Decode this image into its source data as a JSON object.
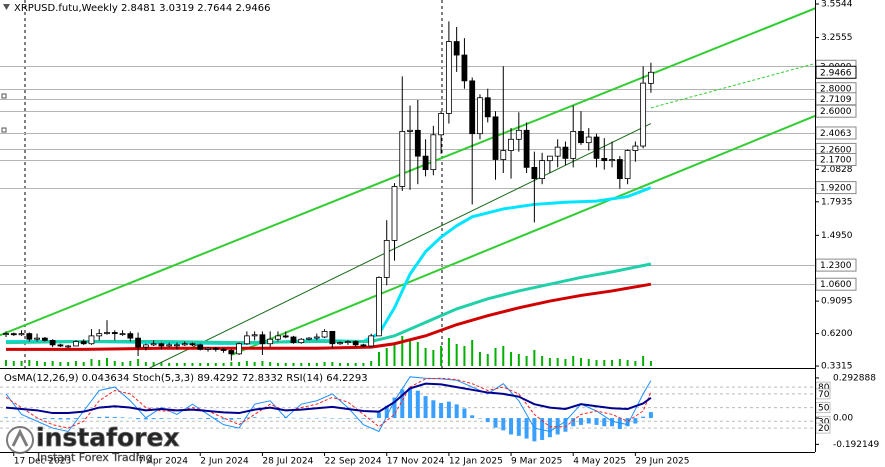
{
  "chart_data": {
    "type": "candlestick",
    "title": "XRPUSD.futu,Weekly 2.8481 3.0319 2.7644 2.9466",
    "categories": [
      null,
      "17 Dec 2023",
      null,
      null,
      null,
      null,
      null,
      null,
      null,
      null,
      null,
      null,
      null,
      null,
      null,
      null,
      null,
      "7 Apr 2024",
      null,
      null,
      null,
      null,
      null,
      null,
      null,
      "2 Jun 2024",
      null,
      null,
      null,
      null,
      null,
      null,
      null,
      "28 Jul 2024",
      null,
      null,
      null,
      null,
      null,
      null,
      null,
      "22 Sep 2024",
      null,
      null,
      null,
      null,
      null,
      null,
      null,
      "17 Nov 2024",
      null,
      null,
      null,
      null,
      null,
      null,
      null,
      "12 Jan 2025",
      null,
      null,
      null,
      null,
      null,
      null,
      null,
      "9 Mar 2025",
      null,
      null,
      null,
      null,
      null,
      null,
      null,
      "4 May 2025",
      null,
      null,
      null,
      null,
      null,
      null,
      null,
      "29 Jun 2025",
      null,
      null
    ],
    "open": [
      0.62,
      0.62,
      0.61,
      0.62,
      0.57,
      0.58,
      0.56,
      0.52,
      0.51,
      0.51,
      0.55,
      0.53,
      0.6,
      0.62,
      0.63,
      0.62,
      0.62,
      0.58,
      0.5,
      0.52,
      0.53,
      0.51,
      0.52,
      0.52,
      0.53,
      0.52,
      0.48,
      0.49,
      0.48,
      0.47,
      0.44,
      0.53,
      0.6,
      0.61,
      0.53,
      0.57,
      0.6,
      0.59,
      0.54,
      0.57,
      0.58,
      0.59,
      0.64,
      0.53,
      0.54,
      0.55,
      0.52,
      0.51,
      0.6,
      1.12,
      1.45,
      1.93,
      2.42,
      2.43,
      2.2,
      2.08,
      2.39,
      2.58,
      3.22,
      3.1,
      2.87,
      2.4,
      2.72,
      2.55,
      2.17,
      2.25,
      2.35,
      2.43,
      2.1,
      2.0,
      2.16,
      2.2,
      2.28,
      2.18,
      2.42,
      2.32,
      2.37,
      2.18,
      2.16,
      2.17,
      2.0,
      2.25,
      2.29,
      2.8481
    ],
    "high": [
      0.64,
      0.63,
      0.65,
      0.63,
      0.62,
      0.59,
      0.57,
      0.53,
      0.52,
      0.56,
      0.57,
      0.66,
      0.66,
      0.74,
      0.65,
      0.65,
      0.64,
      0.63,
      0.53,
      0.56,
      0.54,
      0.54,
      0.54,
      0.55,
      0.54,
      0.53,
      0.5,
      0.5,
      0.49,
      0.48,
      0.54,
      0.64,
      0.64,
      0.64,
      0.64,
      0.64,
      0.64,
      0.6,
      0.58,
      0.59,
      0.62,
      0.66,
      0.64,
      0.55,
      0.56,
      0.56,
      0.53,
      0.62,
      1.13,
      1.63,
      1.96,
      2.91,
      2.65,
      2.7,
      2.35,
      2.47,
      2.6,
      3.4,
      3.35,
      3.25,
      2.9,
      2.75,
      2.8,
      2.6,
      3.0,
      2.45,
      2.59,
      2.5,
      2.24,
      2.23,
      2.2,
      2.35,
      2.33,
      2.65,
      2.6,
      2.45,
      2.4,
      2.36,
      2.33,
      2.2,
      2.26,
      2.33,
      3.0,
      3.0319
    ],
    "low": [
      0.59,
      0.6,
      0.6,
      0.55,
      0.55,
      0.55,
      0.5,
      0.5,
      0.49,
      0.51,
      0.52,
      0.52,
      0.56,
      0.61,
      0.56,
      0.6,
      0.55,
      0.42,
      0.47,
      0.51,
      0.48,
      0.5,
      0.48,
      0.51,
      0.51,
      0.47,
      0.46,
      0.46,
      0.45,
      0.38,
      0.43,
      0.52,
      0.56,
      0.43,
      0.5,
      0.55,
      0.58,
      0.53,
      0.53,
      0.56,
      0.56,
      0.58,
      0.49,
      0.52,
      0.52,
      0.5,
      0.5,
      0.5,
      0.6,
      1.05,
      1.27,
      1.89,
      1.9,
      1.95,
      2.02,
      2.03,
      2.22,
      2.49,
      2.95,
      2.8,
      1.77,
      2.35,
      2.5,
      1.99,
      2.05,
      2.0,
      2.24,
      2.05,
      1.61,
      1.95,
      2.05,
      2.1,
      2.12,
      2.1,
      2.3,
      2.25,
      2.1,
      2.08,
      2.1,
      1.91,
      1.95,
      2.15,
      2.27,
      2.7644
    ],
    "close": [
      0.62,
      0.61,
      0.62,
      0.57,
      0.58,
      0.56,
      0.52,
      0.51,
      0.51,
      0.55,
      0.53,
      0.6,
      0.62,
      0.63,
      0.62,
      0.62,
      0.58,
      0.5,
      0.52,
      0.53,
      0.51,
      0.52,
      0.52,
      0.53,
      0.52,
      0.48,
      0.49,
      0.48,
      0.47,
      0.44,
      0.53,
      0.6,
      0.61,
      0.53,
      0.57,
      0.6,
      0.59,
      0.54,
      0.57,
      0.58,
      0.59,
      0.64,
      0.53,
      0.54,
      0.55,
      0.52,
      0.51,
      0.6,
      1.12,
      1.45,
      1.93,
      2.42,
      2.43,
      2.2,
      2.08,
      2.39,
      2.58,
      3.22,
      3.1,
      2.87,
      2.4,
      2.72,
      2.55,
      2.17,
      2.25,
      2.35,
      2.43,
      2.1,
      2.0,
      2.16,
      2.2,
      2.28,
      2.18,
      2.42,
      2.32,
      2.37,
      2.18,
      2.16,
      2.17,
      2.0,
      2.25,
      2.29,
      2.85,
      2.9466
    ],
    "up_color": "#ffffff",
    "down_color": "#000000",
    "volume": [
      6,
      5,
      5,
      6,
      5,
      4,
      5,
      4,
      4,
      5,
      4,
      7,
      6,
      8,
      5,
      4,
      5,
      7,
      4,
      4,
      4,
      3,
      3,
      3,
      3,
      3,
      3,
      3,
      3,
      4,
      4,
      5,
      4,
      5,
      4,
      3,
      3,
      3,
      3,
      3,
      3,
      4,
      4,
      3,
      3,
      3,
      3,
      5,
      14,
      18,
      22,
      30,
      26,
      24,
      18,
      16,
      20,
      28,
      22,
      20,
      26,
      14,
      12,
      18,
      20,
      14,
      12,
      10,
      16,
      10,
      8,
      8,
      7,
      10,
      8,
      7,
      6,
      6,
      6,
      7,
      6,
      5,
      10,
      5
    ],
    "volume_color": "#00b000",
    "ylim": [
      0.314,
      3.59
    ],
    "yticks": [
      3.5544,
      3.2555,
      2.0828,
      1.7935,
      {
        "value": 1.495,
        "label": "1.4950"
      },
      0.9095,
      {
        "value": 0.62,
        "label": "0.6200"
      },
      0.3315
    ],
    "levels": [
      {
        "value": 3.0,
        "label": "3.0000"
      },
      {
        "value": 2.8,
        "label": "2.8000"
      },
      2.7109,
      {
        "value": 2.6,
        "label": "2.6000"
      },
      2.4063,
      {
        "value": 2.26,
        "label": "2.2600"
      },
      {
        "value": 2.17,
        "label": "2.1700"
      },
      {
        "value": 1.92,
        "label": "1.9200"
      },
      {
        "value": 1.23,
        "label": "1.2300"
      },
      {
        "value": 1.06,
        "label": "1.0600"
      }
    ],
    "level_color": "#b4b4b4",
    "last_price": 2.9466,
    "moving_averages": [
      {
        "color": "#00e5ff",
        "x": [
          0,
          10,
          20,
          30,
          40,
          46,
          48,
          50,
          52,
          54,
          56,
          58,
          60,
          64,
          68,
          72,
          76,
          80,
          83
        ],
        "values": [
          0.55,
          0.55,
          0.54,
          0.53,
          0.56,
          0.55,
          0.62,
          0.85,
          1.15,
          1.35,
          1.48,
          1.58,
          1.66,
          1.73,
          1.77,
          1.79,
          1.8,
          1.84,
          1.92
        ]
      },
      {
        "color": "#20d0a8",
        "x": [
          0,
          10,
          20,
          30,
          40,
          47,
          50,
          54,
          58,
          62,
          66,
          70,
          74,
          78,
          83
        ],
        "values": [
          0.54,
          0.55,
          0.55,
          0.54,
          0.55,
          0.55,
          0.6,
          0.72,
          0.84,
          0.93,
          1.0,
          1.06,
          1.12,
          1.17,
          1.24
        ]
      },
      {
        "color": "#d00000",
        "x": [
          0,
          10,
          20,
          30,
          40,
          47,
          50,
          54,
          58,
          62,
          66,
          70,
          74,
          78,
          83
        ],
        "values": [
          0.48,
          0.48,
          0.49,
          0.49,
          0.49,
          0.5,
          0.53,
          0.6,
          0.7,
          0.78,
          0.85,
          0.91,
          0.96,
          1.0,
          1.06
        ]
      }
    ],
    "trendlines": [
      {
        "color": "#32cd32",
        "style": "solid",
        "x": [
          -1,
          105
        ],
        "values": [
          0.6,
          3.54
        ]
      },
      {
        "color": "#32cd32",
        "style": "solid",
        "x": [
          29,
          113
        ],
        "values": [
          0.43,
          2.81
        ]
      },
      {
        "color": "#1a6a1a",
        "style": "thin",
        "x": [
          18.5,
          83
        ],
        "values": [
          0.314,
          2.49
        ]
      },
      {
        "color": "#32cd32",
        "style": "dashed",
        "x": [
          83,
          113
        ],
        "values": [
          2.63,
          3.19
        ]
      }
    ],
    "indicator": {
      "title": "OsMA(12,26,9) 0.043634  Stoch(5,3,3) 89.4292 72.8332  RSI(14) 64.2293",
      "osma": {
        "color": "#3aa0ff",
        "values": [
          0.005,
          0.004,
          0.003,
          -0.002,
          -0.004,
          -0.006,
          -0.008,
          -0.01,
          -0.01,
          -0.006,
          -0.004,
          0.004,
          0.008,
          0.01,
          0.008,
          0.005,
          0.002,
          -0.008,
          -0.01,
          -0.008,
          -0.006,
          -0.004,
          -0.003,
          -0.002,
          -0.002,
          -0.005,
          -0.007,
          -0.008,
          -0.009,
          -0.012,
          -0.006,
          0.004,
          0.006,
          0.002,
          0.003,
          0.004,
          0.004,
          0.002,
          0.001,
          0.001,
          0.001,
          0.003,
          -0.002,
          -0.003,
          -0.003,
          -0.004,
          -0.005,
          0.0,
          0.04,
          0.09,
          0.15,
          0.21,
          0.22,
          0.2,
          0.16,
          0.13,
          0.11,
          0.12,
          0.1,
          0.07,
          0.02,
          0.0,
          -0.03,
          -0.07,
          -0.09,
          -0.12,
          -0.13,
          -0.15,
          -0.17,
          -0.16,
          -0.14,
          -0.12,
          -0.1,
          -0.06,
          -0.05,
          -0.04,
          -0.05,
          -0.06,
          -0.06,
          -0.08,
          -0.06,
          -0.04,
          0.01,
          0.043634
        ]
      },
      "osma_lim": [
        -0.248,
        0.351
      ],
      "osma_ticks": [
        0.292888,
        {
          "value": 0,
          "label": "0.00"
        },
        -0.192149
      ],
      "lim": [
        -15,
        105
      ],
      "ticks": [
        80,
        70,
        50,
        30,
        20
      ],
      "lines": [
        {
          "color": "#1e90ff",
          "style": "thin",
          "x": [
            0,
            2,
            4,
            6,
            8,
            10,
            12,
            14,
            16,
            18,
            20,
            22,
            24,
            26,
            28,
            30,
            32,
            34,
            36,
            38,
            40,
            42,
            44,
            46,
            48,
            50,
            52,
            54,
            56,
            58,
            60,
            62,
            64,
            66,
            68,
            70,
            72,
            74,
            76,
            78,
            80,
            82,
            83
          ],
          "values": [
            70,
            40,
            30,
            20,
            15,
            45,
            75,
            80,
            60,
            35,
            50,
            40,
            55,
            40,
            25,
            20,
            55,
            60,
            35,
            55,
            60,
            70,
            50,
            25,
            15,
            60,
            95,
            93,
            92,
            90,
            80,
            70,
            85,
            60,
            20,
            15,
            30,
            55,
            45,
            30,
            25,
            70,
            89.4292
          ]
        },
        {
          "color": "#ff2020",
          "style": "dashed",
          "x": [
            0,
            2,
            4,
            6,
            8,
            10,
            12,
            14,
            16,
            18,
            20,
            22,
            24,
            26,
            28,
            30,
            32,
            34,
            36,
            38,
            40,
            42,
            44,
            46,
            48,
            50,
            52,
            54,
            56,
            58,
            60,
            62,
            64,
            66,
            68,
            70,
            72,
            74,
            76,
            78,
            80,
            82,
            83
          ],
          "values": [
            65,
            50,
            35,
            25,
            20,
            30,
            60,
            75,
            70,
            50,
            45,
            45,
            50,
            45,
            35,
            25,
            40,
            55,
            45,
            50,
            55,
            65,
            58,
            40,
            22,
            40,
            80,
            92,
            93,
            91,
            85,
            75,
            80,
            70,
            40,
            22,
            22,
            40,
            45,
            40,
            30,
            45,
            72.8332
          ]
        },
        {
          "color": "#000090",
          "style": "solid",
          "x": [
            0,
            2,
            4,
            6,
            8,
            10,
            12,
            14,
            16,
            18,
            20,
            22,
            24,
            26,
            28,
            30,
            32,
            34,
            36,
            38,
            40,
            42,
            44,
            46,
            48,
            50,
            52,
            54,
            56,
            58,
            60,
            62,
            64,
            66,
            68,
            70,
            72,
            74,
            76,
            78,
            80,
            82,
            83
          ],
          "values": [
            50,
            48,
            46,
            42,
            42,
            44,
            50,
            52,
            50,
            46,
            48,
            46,
            47,
            45,
            43,
            42,
            47,
            50,
            46,
            47,
            49,
            51,
            48,
            45,
            44,
            58,
            78,
            85,
            84,
            80,
            76,
            72,
            70,
            66,
            55,
            50,
            48,
            55,
            52,
            49,
            48,
            56,
            64.2293
          ]
        }
      ]
    }
  },
  "watermark": {
    "brand": "instaforex",
    "tagline": "Instant Forex Trading"
  }
}
